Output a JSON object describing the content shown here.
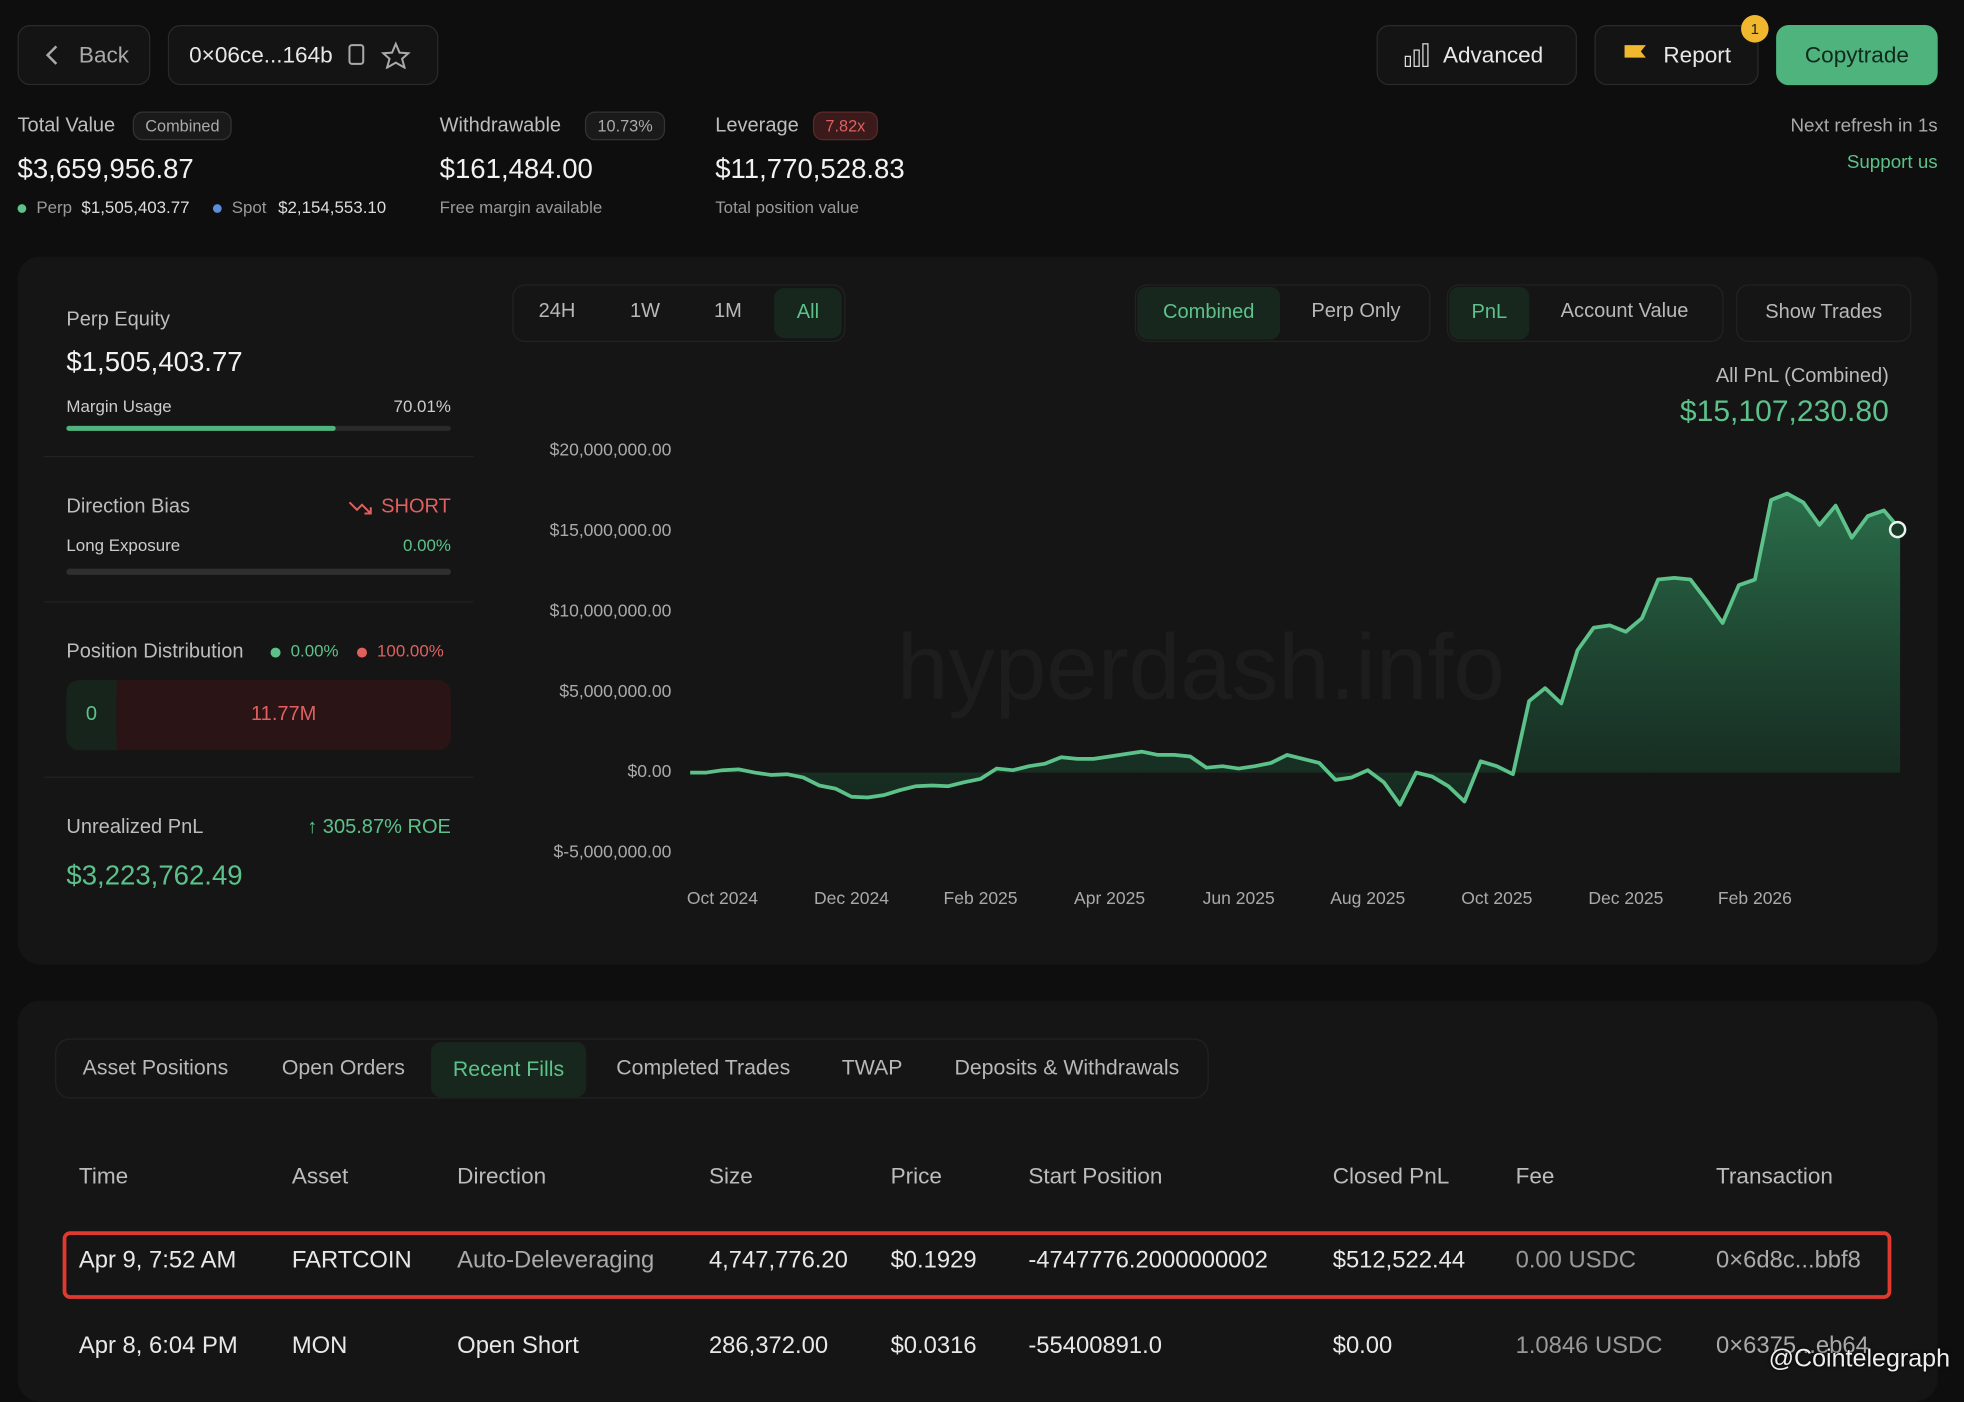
{
  "header": {
    "back": "Back",
    "address": "0×06ce...164b",
    "advanced": "Advanced",
    "report": "Report",
    "report_badge": "1",
    "copytrade": "Copytrade"
  },
  "summary": {
    "total_value": {
      "label": "Total Value",
      "tag": "Combined",
      "value": "$3,659,956.87",
      "perp_label": "Perp",
      "perp": "$1,505,403.77",
      "spot_label": "Spot",
      "spot": "$2,154,553.10"
    },
    "withdrawable": {
      "label": "Withdrawable",
      "tag": "10.73%",
      "value": "$161,484.00",
      "note": "Free margin available"
    },
    "leverage": {
      "label": "Leverage",
      "tag": "7.82x",
      "value": "$11,770,528.83",
      "note": "Total position value"
    },
    "refresh": "Next refresh in 1s",
    "support": "Support us"
  },
  "side": {
    "perp_equity": {
      "label": "Perp Equity",
      "value": "$1,505,403.77",
      "usage_label": "Margin Usage",
      "usage": "70.01%"
    },
    "direction": {
      "label": "Direction Bias",
      "value": "SHORT",
      "exposure_label": "Long Exposure",
      "exposure": "0.00%"
    },
    "distribution": {
      "label": "Position Distribution",
      "long": "0.00%",
      "short": "100.00%",
      "bar_long": "0",
      "bar_short": "11.77M"
    },
    "unrealized": {
      "label": "Unrealized PnL",
      "roe": "305.87% ROE",
      "value": "$3,223,762.49"
    }
  },
  "controls": {
    "ranges": [
      "24H",
      "1W",
      "1M",
      "All"
    ],
    "modes": [
      "Combined",
      "Perp Only"
    ],
    "metrics": [
      "PnL",
      "Account Value"
    ],
    "show_trades": "Show Trades"
  },
  "chart_data": {
    "type": "line",
    "title": "All PnL (Combined)",
    "total": "$15,107,230.80",
    "watermark": "hyperdash.info",
    "categories": [
      null,
      null,
      "Oct 2024",
      null,
      null,
      null,
      null,
      null,
      null,
      null,
      "Dec 2024",
      null,
      null,
      null,
      null,
      null,
      null,
      null,
      "Feb 2025",
      null,
      null,
      null,
      null,
      null,
      null,
      null,
      "Apr 2025",
      null,
      null,
      null,
      null,
      null,
      null,
      null,
      "Jun 2025",
      null,
      null,
      null,
      null,
      null,
      null,
      null,
      "Aug 2025",
      null,
      null,
      null,
      null,
      null,
      null,
      null,
      "Oct 2025",
      null,
      null,
      null,
      null,
      null,
      null,
      null,
      "Dec 2025",
      null,
      null,
      null,
      null,
      null,
      null,
      null,
      "Feb 2026",
      null,
      null,
      null,
      null,
      null,
      null,
      null,
      null,
      null
    ],
    "series": [
      {
        "name": "PnL",
        "color": "#5cc28a",
        "values": [
          0,
          0,
          150000,
          200000,
          0,
          -150000,
          -100000,
          -300000,
          -800000,
          -1000000,
          -1500000,
          -1550000,
          -1400000,
          -1100000,
          -850000,
          -800000,
          -850000,
          -600000,
          -400000,
          250000,
          150000,
          400000,
          550000,
          950000,
          850000,
          850000,
          1000000,
          1150000,
          1300000,
          1100000,
          1100000,
          1000000,
          300000,
          400000,
          250000,
          400000,
          600000,
          1100000,
          850000,
          600000,
          -450000,
          -300000,
          150000,
          -600000,
          -2000000,
          0,
          -250000,
          -850000,
          -1800000,
          700000,
          400000,
          -100000,
          4450000,
          5250000,
          4300000,
          7600000,
          9000000,
          9150000,
          8750000,
          9600000,
          12000000,
          12100000,
          12000000,
          10700000,
          9300000,
          11650000,
          12000000,
          16950000,
          17350000,
          16800000,
          15400000,
          16600000,
          14600000,
          15950000,
          16300000,
          15107230.8
        ]
      }
    ],
    "ylim": [
      -5000000,
      20000000
    ],
    "yticks": [
      {
        "value": -5000000,
        "label": "$-5,000,000.00"
      },
      {
        "value": 0,
        "label": "$0.00"
      },
      {
        "value": 5000000,
        "label": "$5,000,000.00"
      },
      {
        "value": 10000000,
        "label": "$10,000,000.00"
      },
      {
        "value": 15000000,
        "label": "$15,000,000.00"
      },
      {
        "value": 20000000,
        "label": "$20,000,000.00"
      }
    ],
    "grid": false
  },
  "tabs": [
    "Asset Positions",
    "Open Orders",
    "Recent Fills",
    "Completed Trades",
    "TWAP",
    "Deposits & Withdrawals"
  ],
  "table": {
    "columns": [
      "Time",
      "Asset",
      "Direction",
      "Size",
      "Price",
      "Start Position",
      "Closed PnL",
      "Fee",
      "Transaction"
    ],
    "rows": [
      [
        "Apr 9, 7:52 AM",
        "FARTCOIN",
        "Auto-Deleveraging",
        "4,747,776.20",
        "$0.1929",
        "-4747776.2000000002",
        "$512,522.44",
        "0.00 USDC",
        "0×6d8c...bbf8"
      ],
      [
        "Apr 8, 6:04 PM",
        "MON",
        "Open Short",
        "286,372.00",
        "$0.0316",
        "-55400891.0",
        "$0.00",
        "1.0846 USDC",
        "0×6375...eb64"
      ]
    ]
  },
  "credit": "@Cointelegraph"
}
